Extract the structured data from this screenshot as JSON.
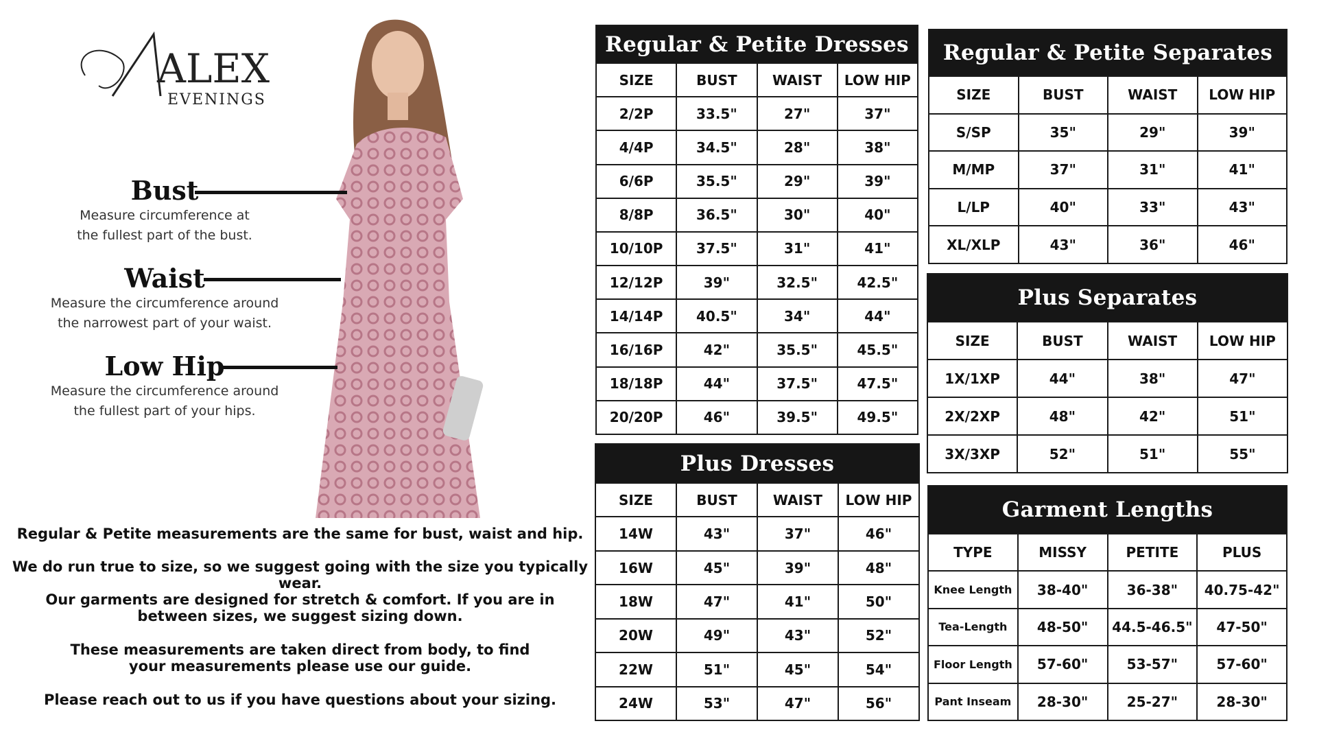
{
  "brand": {
    "logo_text": "ALEX",
    "logo_sub": "EVENINGS"
  },
  "guide": [
    {
      "label": "Bust",
      "desc": "Measure circumference at the fullest part of the bust."
    },
    {
      "label": "Waist",
      "desc": "Measure the circumference around the narrowest part of your waist."
    },
    {
      "label": "Low Hip",
      "desc": "Measure the circumference around the fullest part of your hips."
    }
  ],
  "notes": [
    "Regular & Petite measurements are the same for bust, waist and hip.",
    "We do run true to size, so we suggest going with the size you typically wear.",
    "Our garments are designed for stretch & comfort. If you are in between sizes, we suggest sizing down.",
    "These measurements are taken direct from body, to find your measurements please use our guide.",
    "Please reach out to us if you have questions about your sizing."
  ],
  "tables": {
    "reg_dresses": {
      "title": "Regular & Petite Dresses",
      "headers": [
        "SIZE",
        "BUST",
        "WAIST",
        "LOW HIP"
      ],
      "rows": [
        [
          "2/2P",
          "33.5\"",
          "27\"",
          "37\""
        ],
        [
          "4/4P",
          "34.5\"",
          "28\"",
          "38\""
        ],
        [
          "6/6P",
          "35.5\"",
          "29\"",
          "39\""
        ],
        [
          "8/8P",
          "36.5\"",
          "30\"",
          "40\""
        ],
        [
          "10/10P",
          "37.5\"",
          "31\"",
          "41\""
        ],
        [
          "12/12P",
          "39\"",
          "32.5\"",
          "42.5\""
        ],
        [
          "14/14P",
          "40.5\"",
          "34\"",
          "44\""
        ],
        [
          "16/16P",
          "42\"",
          "35.5\"",
          "45.5\""
        ],
        [
          "18/18P",
          "44\"",
          "37.5\"",
          "47.5\""
        ],
        [
          "20/20P",
          "46\"",
          "39.5\"",
          "49.5\""
        ]
      ]
    },
    "plus_dresses": {
      "title": "Plus Dresses",
      "headers": [
        "SIZE",
        "BUST",
        "WAIST",
        "LOW HIP"
      ],
      "rows": [
        [
          "14W",
          "43\"",
          "37\"",
          "46\""
        ],
        [
          "16W",
          "45\"",
          "39\"",
          "48\""
        ],
        [
          "18W",
          "47\"",
          "41\"",
          "50\""
        ],
        [
          "20W",
          "49\"",
          "43\"",
          "52\""
        ],
        [
          "22W",
          "51\"",
          "45\"",
          "54\""
        ],
        [
          "24W",
          "53\"",
          "47\"",
          "56\""
        ]
      ]
    },
    "reg_separates": {
      "title": "Regular & Petite Separates",
      "headers": [
        "SIZE",
        "BUST",
        "WAIST",
        "LOW HIP"
      ],
      "rows": [
        [
          "S/SP",
          "35\"",
          "29\"",
          "39\""
        ],
        [
          "M/MP",
          "37\"",
          "31\"",
          "41\""
        ],
        [
          "L/LP",
          "40\"",
          "33\"",
          "43\""
        ],
        [
          "XL/XLP",
          "43\"",
          "36\"",
          "46\""
        ]
      ]
    },
    "plus_separates": {
      "title": "Plus Separates",
      "headers": [
        "SIZE",
        "BUST",
        "WAIST",
        "LOW HIP"
      ],
      "rows": [
        [
          "1X/1XP",
          "44\"",
          "38\"",
          "47\""
        ],
        [
          "2X/2XP",
          "48\"",
          "42\"",
          "51\""
        ],
        [
          "3X/3XP",
          "52\"",
          "51\"",
          "55\""
        ]
      ]
    },
    "garment_lengths": {
      "title": "Garment Lengths",
      "headers": [
        "TYPE",
        "MISSY",
        "PETITE",
        "PLUS"
      ],
      "rows": [
        [
          "Knee Length",
          "38-40\"",
          "36-38\"",
          "40.75-42\""
        ],
        [
          "Tea-Length",
          "48-50\"",
          "44.5-46.5\"",
          "47-50\""
        ],
        [
          "Floor Length",
          "57-60\"",
          "53-57\"",
          "57-60\""
        ],
        [
          "Pant Inseam",
          "28-30\"",
          "25-27\"",
          "28-30\""
        ]
      ]
    }
  }
}
